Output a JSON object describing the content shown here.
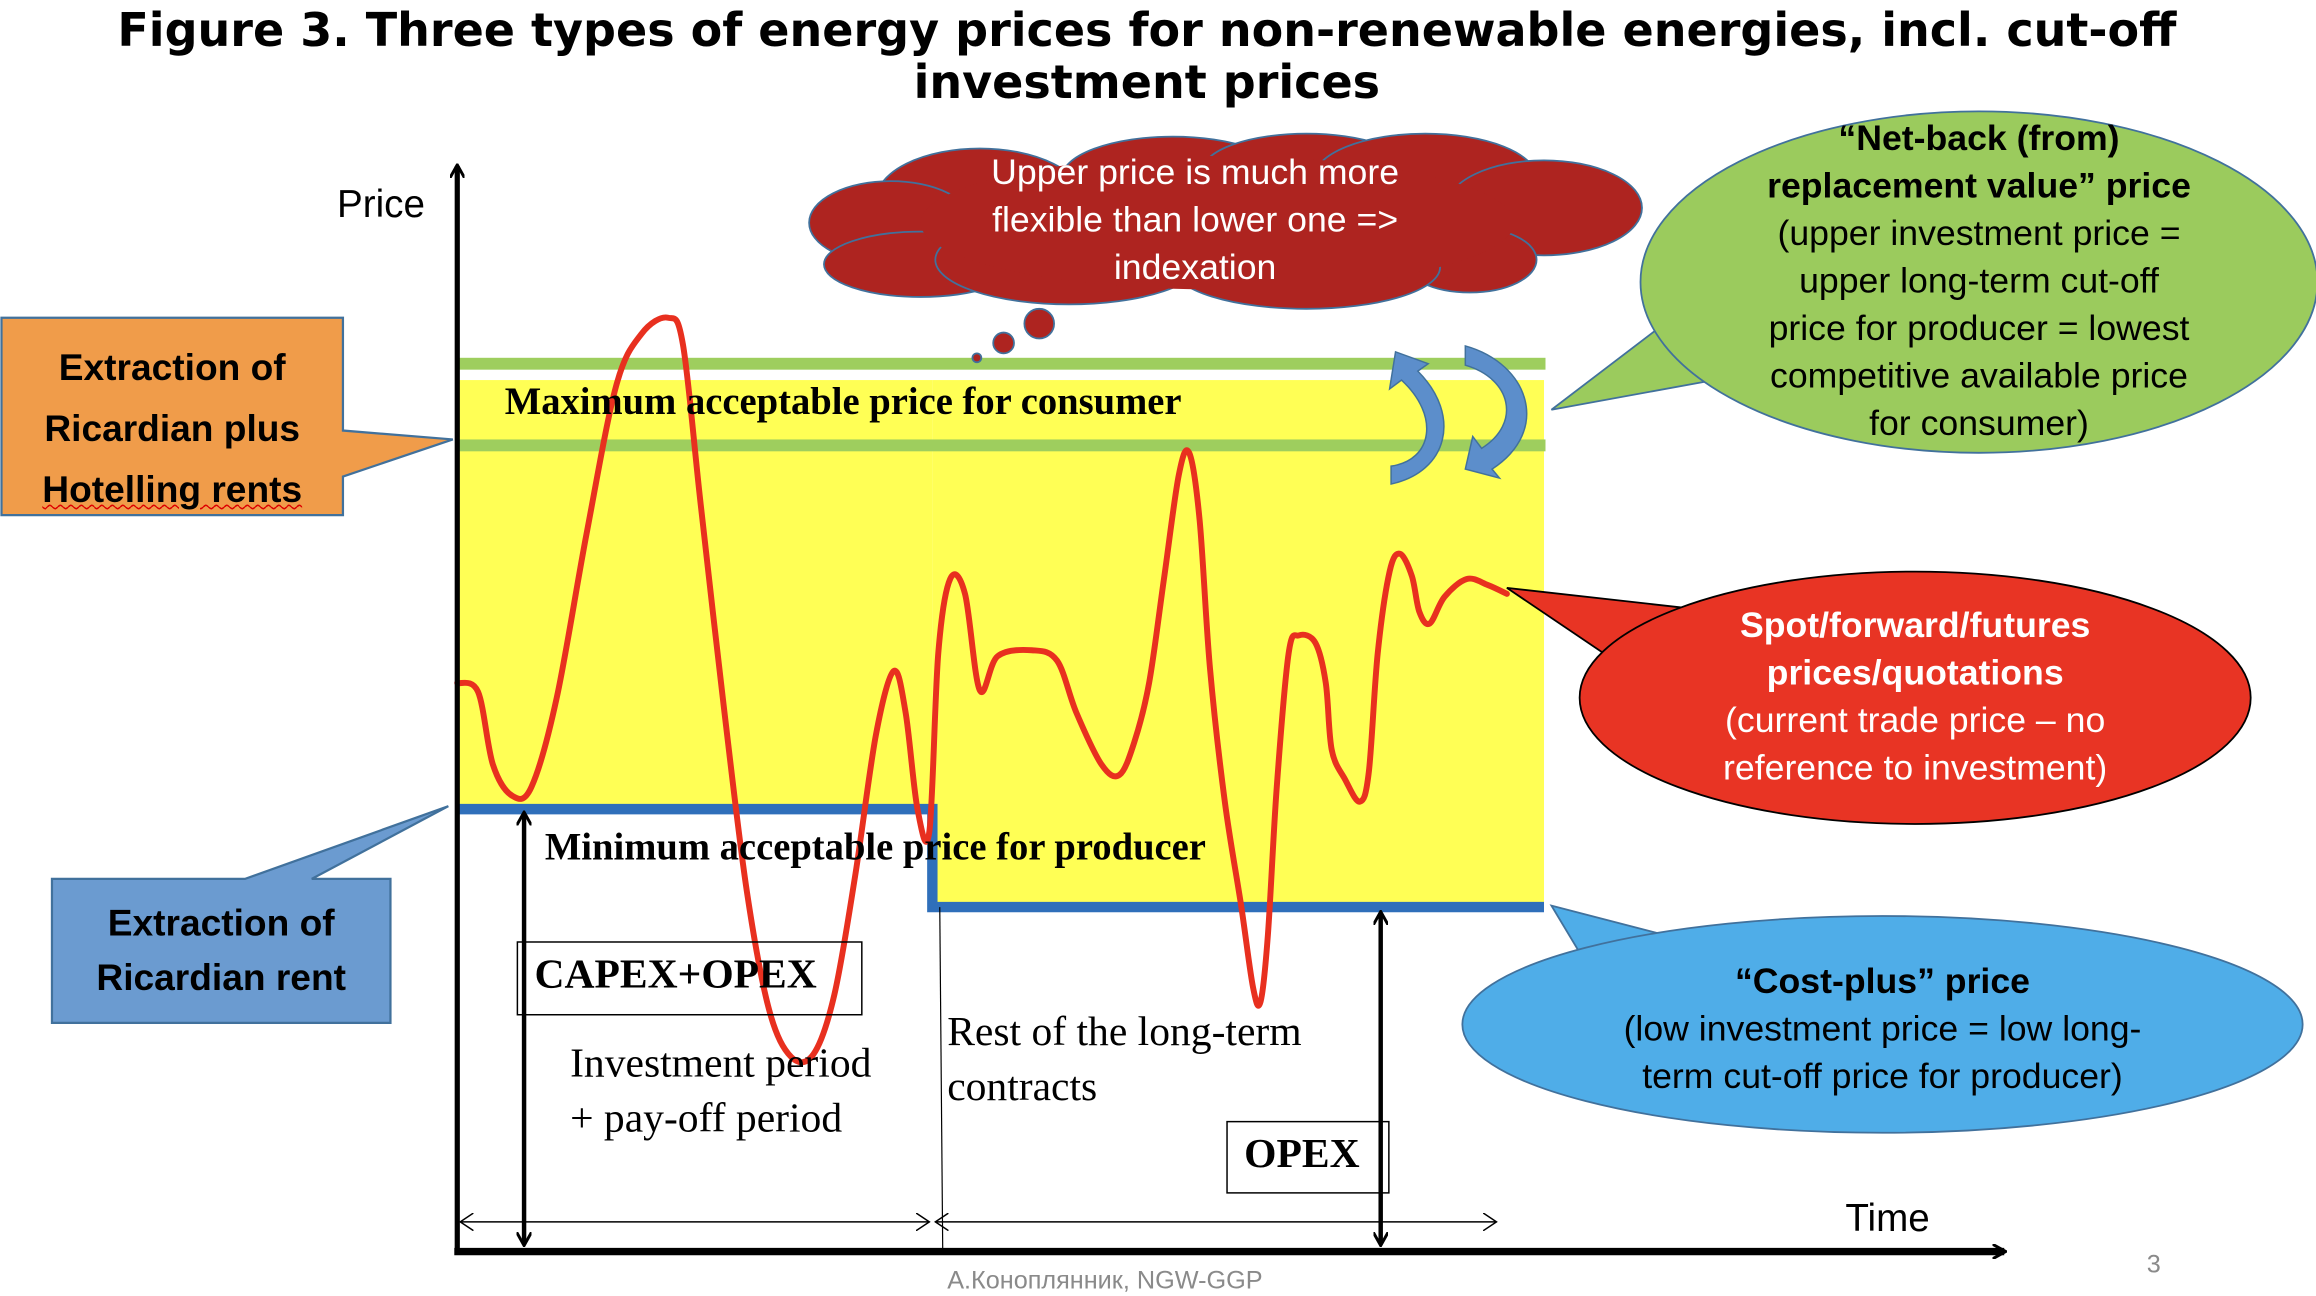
{
  "title": {
    "line1": "Figure 3. Three types of energy prices for non-renewable energies, incl. cut-off",
    "line2": "investment prices"
  },
  "axes": {
    "y_label": "Price",
    "x_label": "Time"
  },
  "bands": {
    "max_label": "Maximum acceptable price for consumer",
    "min_label": "Minimum acceptable price for producer"
  },
  "periods": {
    "capex_opex": "CAPEX+OPEX",
    "investment_line1": "Investment period",
    "investment_line2": "+ pay-off period",
    "rest_line1": "Rest of the long-term",
    "rest_line2": "contracts",
    "opex": "OPEX"
  },
  "callouts": {
    "orange": {
      "lines": [
        "Extraction of",
        "Ricardian plus",
        "Hotelling rents"
      ],
      "color": "#F09C4A"
    },
    "blue_left": {
      "lines": [
        "Extraction of",
        "Ricardian rent"
      ],
      "color": "#6B9BD0"
    },
    "cloud": {
      "lines": [
        "Upper price is much more",
        "flexible than lower one =>",
        "indexation"
      ],
      "color": "#AE2420"
    },
    "green": {
      "title1": "“Net-back (from)",
      "title2": "replacement value” price",
      "lines": [
        "(upper investment price =",
        "upper long-term cut-off",
        "price for producer = lowest",
        "competitive available price",
        "for consumer)"
      ],
      "color": "#9BCB5D"
    },
    "red": {
      "title1": "Spot/forward/futures",
      "title2": "prices/quotations",
      "lines": [
        "(current trade price – no",
        "reference to investment)"
      ],
      "color": "#E83424"
    },
    "blue_right": {
      "title": "“Cost-plus” price",
      "lines": [
        "(low investment price = low long-",
        "term cut-off price for producer)"
      ],
      "color": "#4FADE8"
    }
  },
  "footer": {
    "author": "А.Коноплянник, NGW-GGP",
    "page": "3"
  },
  "colors": {
    "yellow": "#FFFF55",
    "green_line": "#9ECE5E",
    "blue_line": "#2F6FBA",
    "price_curve": "#E8301F"
  }
}
